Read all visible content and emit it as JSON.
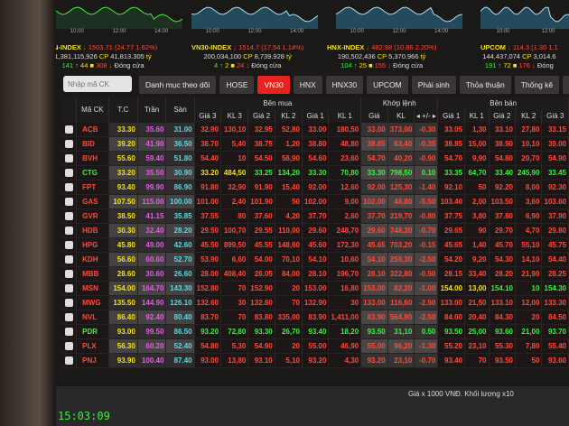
{
  "charts": [
    {
      "times": [
        "10:00",
        "12:00",
        "14:00"
      ]
    },
    {
      "times": [
        "10:00",
        "12:00",
        "14:00"
      ]
    },
    {
      "times": [
        "10:00",
        "12:00",
        "14:00"
      ]
    },
    {
      "times": [
        "10:00",
        "12:00"
      ]
    }
  ],
  "indices": [
    {
      "name": "VN-INDEX",
      "value": "↓ 1503.71",
      "change": "(24.77  1.62%)",
      "volume": "1,381,115,926",
      "cp": "CP",
      "amount": "41,813.305",
      "unit": "tỷ",
      "up": "141",
      "ref": "44",
      "down": "308",
      "status": "Đóng cửa"
    },
    {
      "name": "VN30-INDEX",
      "value": "↓ 1514.7",
      "change": "(17.54  1.14%)",
      "volume": "200,034,100",
      "cp": "CP",
      "amount": "8,739.928",
      "unit": "tỷ",
      "up": "4",
      "ref": "2",
      "down": "24",
      "status": "Đóng cửa"
    },
    {
      "name": "HNX-INDEX",
      "value": "↓ 482.98",
      "change": "(10.86  2.20%)",
      "volume": "190,502,436",
      "cp": "CP",
      "amount": "5,370.966",
      "unit": "tỷ",
      "up": "104",
      "ref": "25",
      "down": "155",
      "status": "Đóng cửa"
    },
    {
      "name": "UPCOM",
      "value": "↓ 114.3",
      "change": "(1.30  1.1",
      "volume": "144,437,074",
      "cp": "CP",
      "amount": "3,014.6",
      "unit": "",
      "up": "191",
      "ref": "72",
      "down": "176",
      "status": "Đóng"
    }
  ],
  "search": {
    "placeholder": "Nhập mã CK"
  },
  "tabs": [
    {
      "label": "Danh mục theo dõi"
    },
    {
      "label": "HOSE"
    },
    {
      "label": "VN30",
      "active": true
    },
    {
      "label": "HNX"
    },
    {
      "label": "HNX30"
    },
    {
      "label": "UPCOM"
    },
    {
      "label": "Phái sinh"
    },
    {
      "label": "Thỏa thuận"
    },
    {
      "label": "Thống kê"
    },
    {
      "label": "Lô lẻ"
    },
    {
      "label": "Ch"
    }
  ],
  "headers": {
    "ma": "Mã CK",
    "tc": "T.C",
    "tran": "Trần",
    "san": "Sàn",
    "buy": "Bên mua",
    "match": "Khớp lệnh",
    "sell": "Bên bán",
    "sub": [
      "Giá 3",
      "KL 3",
      "Giá 2",
      "KL 2",
      "Giá 1",
      "KL 1",
      "Giá",
      "KL",
      "◂ +/- ▸",
      "Giá 1",
      "KL 1",
      "Giá 2",
      "KL 2",
      "Giá 3"
    ]
  },
  "colors": {
    "down": "#ff4a3a",
    "up": "#3ef03e",
    "ref": "#f2e21c",
    "ceiling": "#e85ce8",
    "floor": "#5ad8e6",
    "active_tab": "#e8231e"
  },
  "rows": [
    {
      "sym": "ACB",
      "tc": "33.30",
      "tran": "35.60",
      "san": "31.00",
      "b": [
        "32.90",
        "130,10",
        "32.95",
        "52,80",
        "33.00",
        "180,50"
      ],
      "m": [
        "33.00",
        "373,00",
        "-0.30"
      ],
      "s": [
        "33.05",
        "1,30",
        "33.10",
        "27,80",
        "33.15"
      ]
    },
    {
      "sym": "BID",
      "tc": "39.20",
      "tran": "41.90",
      "san": "36.50",
      "b": [
        "38.70",
        "5,40",
        "38.75",
        "1,20",
        "38.80",
        "48,80"
      ],
      "m": [
        "38.85",
        "63,40",
        "-0.35"
      ],
      "s": [
        "38.85",
        "15,00",
        "38.90",
        "10,10",
        "39.00"
      ]
    },
    {
      "sym": "BVH",
      "tc": "55.60",
      "tran": "59.40",
      "san": "51.80",
      "b": [
        "54.40",
        "10",
        "54.50",
        "58,90",
        "54.60",
        "23,60"
      ],
      "m": [
        "54.70",
        "40,20",
        "-0.90"
      ],
      "s": [
        "54.70",
        "9,90",
        "54.80",
        "20,70",
        "54.90"
      ]
    },
    {
      "sym": "CTG",
      "tc": "33.20",
      "tran": "35.50",
      "san": "30.90",
      "b": [
        "33.20",
        "484,50",
        "33.25",
        "134,20",
        "33.30",
        "70,80"
      ],
      "m": [
        "33.30",
        "798,50",
        "0.10"
      ],
      "s": [
        "33.35",
        "64,70",
        "33.40",
        "245,90",
        "33.45"
      ]
    },
    {
      "sym": "FPT",
      "tc": "93.40",
      "tran": "99.90",
      "san": "86.90",
      "b": [
        "91.80",
        "32,90",
        "91.90",
        "15,40",
        "92.00",
        "12,60"
      ],
      "m": [
        "92.00",
        "125,30",
        "-1.40"
      ],
      "s": [
        "92.10",
        "50",
        "92.20",
        "8,00",
        "92.30"
      ]
    },
    {
      "sym": "GAS",
      "tc": "107.50",
      "tran": "115.00",
      "san": "100.00",
      "b": [
        "101.00",
        "2,40",
        "101.90",
        "50",
        "102.00",
        "9,00"
      ],
      "m": [
        "102.00",
        "48,80",
        "-5.50"
      ],
      "s": [
        "103.40",
        "2,00",
        "103.50",
        "3,60",
        "103.60"
      ]
    },
    {
      "sym": "GVR",
      "tc": "38.50",
      "tran": "41.15",
      "san": "35.85",
      "b": [
        "37.55",
        "80",
        "37.60",
        "4,20",
        "37.70",
        "2,60"
      ],
      "m": [
        "37.70",
        "219,70",
        "-0.80"
      ],
      "s": [
        "37.75",
        "3,80",
        "37.80",
        "6,90",
        "37.90"
      ]
    },
    {
      "sym": "HDB",
      "tc": "30.30",
      "tran": "32.40",
      "san": "28.20",
      "b": [
        "29.50",
        "100,70",
        "29.55",
        "110,00",
        "29.60",
        "248,70"
      ],
      "m": [
        "29.60",
        "748,30",
        "-0.70"
      ],
      "s": [
        "29.65",
        "90",
        "29.70",
        "4,70",
        "29.80"
      ]
    },
    {
      "sym": "HPG",
      "tc": "45.80",
      "tran": "49.00",
      "san": "42.60",
      "b": [
        "45.50",
        "899,50",
        "45.55",
        "148,60",
        "45.60",
        "172,30"
      ],
      "m": [
        "45.65",
        "703,20",
        "-0.15"
      ],
      "s": [
        "45.65",
        "1,40",
        "45.70",
        "55,10",
        "45.75"
      ]
    },
    {
      "sym": "KDH",
      "tc": "56.60",
      "tran": "60.60",
      "san": "52.70",
      "b": [
        "53.90",
        "6,60",
        "54.00",
        "70,10",
        "54.10",
        "10,60"
      ],
      "m": [
        "54.10",
        "259,30",
        "-2.50"
      ],
      "s": [
        "54.20",
        "9,20",
        "54.30",
        "14,10",
        "54.40"
      ]
    },
    {
      "sym": "MBB",
      "tc": "28.60",
      "tran": "30.60",
      "san": "26.60",
      "b": [
        "28.00",
        "408,40",
        "28.05",
        "84,00",
        "28.10",
        "196,70"
      ],
      "m": [
        "28.10",
        "322,80",
        "-0.50"
      ],
      "s": [
        "28.15",
        "33,40",
        "28.20",
        "21,90",
        "28.25"
      ]
    },
    {
      "sym": "MSN",
      "tc": "154.00",
      "tran": "164.70",
      "san": "143.30",
      "b": [
        "152.80",
        "70",
        "152.90",
        "20",
        "153.00",
        "16,80"
      ],
      "m": [
        "153.00",
        "82,20",
        "-1.00"
      ],
      "s": [
        "154.00",
        "13,00",
        "154.10",
        "10",
        "154.30"
      ]
    },
    {
      "sym": "MWG",
      "tc": "135.50",
      "tran": "144.90",
      "san": "126.10",
      "b": [
        "132.60",
        "30",
        "132.80",
        "70",
        "132.90",
        "30"
      ],
      "m": [
        "133.00",
        "116,60",
        "-2.50"
      ],
      "s": [
        "133.00",
        "21,50",
        "133.10",
        "12,00",
        "133.30"
      ]
    },
    {
      "sym": "NVL",
      "tc": "86.40",
      "tran": "92.40",
      "san": "80.40",
      "b": [
        "83.70",
        "70",
        "83.80",
        "335,00",
        "83.90",
        "1,411,00"
      ],
      "m": [
        "83.90",
        "564,90",
        "-2.50"
      ],
      "s": [
        "84.00",
        "20,40",
        "84.30",
        "20",
        "84.50"
      ]
    },
    {
      "sym": "PDR",
      "tc": "93.00",
      "tran": "99.50",
      "san": "86.50",
      "b": [
        "93.20",
        "72,80",
        "93.30",
        "26,70",
        "93.40",
        "18,20"
      ],
      "m": [
        "93.50",
        "31,10",
        "0.50"
      ],
      "s": [
        "93.50",
        "25,00",
        "93.60",
        "21,00",
        "93.70"
      ]
    },
    {
      "sym": "PLX",
      "tc": "56.30",
      "tran": "60.20",
      "san": "52.40",
      "b": [
        "54.80",
        "5,30",
        "54.90",
        "20",
        "55.00",
        "46,90"
      ],
      "m": [
        "55.00",
        "96,20",
        "-1.30"
      ],
      "s": [
        "55.20",
        "23,10",
        "55.30",
        "7,80",
        "55.40"
      ]
    },
    {
      "sym": "PNJ",
      "tc": "93.90",
      "tran": "100.40",
      "san": "87.40",
      "b": [
        "93.00",
        "13,80",
        "93.10",
        "5,10",
        "93.20",
        "4,30"
      ],
      "m": [
        "93.20",
        "23,10",
        "-0.70"
      ],
      "s": [
        "93.40",
        "70",
        "93.50",
        "50",
        "93.60"
      ]
    }
  ],
  "footer": {
    "note": "Giá x 1000 VNĐ. Khối lượng x10",
    "clock": "15:03:09"
  }
}
